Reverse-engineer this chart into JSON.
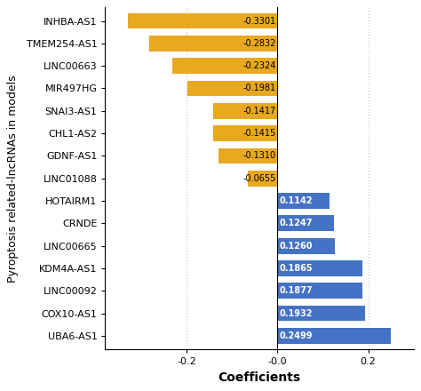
{
  "categories": [
    "INHBA-AS1",
    "TMEM254-AS1",
    "LINC00663",
    "MIR497HG",
    "SNAI3-AS1",
    "CHL1-AS2",
    "GDNF-AS1",
    "LINC01088",
    "HOTAIRM1",
    "CRNDE",
    "LINC00665",
    "KDM4A-AS1",
    "LINC00092",
    "COX10-AS1",
    "UBA6-AS1"
  ],
  "values": [
    -0.3301,
    -0.2832,
    -0.2324,
    -0.1981,
    -0.1417,
    -0.1415,
    -0.131,
    -0.0655,
    0.1142,
    0.1247,
    0.126,
    0.1865,
    0.1877,
    0.1932,
    0.2499
  ],
  "bar_colors": [
    "#E8A820",
    "#E8A820",
    "#E8A820",
    "#E8A820",
    "#E8A820",
    "#E8A820",
    "#E8A820",
    "#E8A820",
    "#4472C4",
    "#4472C4",
    "#4472C4",
    "#4472C4",
    "#4472C4",
    "#4472C4",
    "#4472C4"
  ],
  "value_labels": [
    "-0.3301",
    "-0.2832",
    "-0.2324",
    "-0.1981",
    "-0.1417",
    "-0.1415",
    "-0.1310",
    "-0.0655",
    "0.1142",
    "0.1247",
    "0.1260",
    "0.1865",
    "0.1877",
    "0.1932",
    "0.2499"
  ],
  "xlabel": "Coefficients",
  "ylabel": "Pyroptosis related-lncRNAs in models",
  "xlim": [
    -0.38,
    0.3
  ],
  "xticks": [
    -0.2,
    0.0,
    0.2
  ],
  "xticklabels": [
    "-0.2",
    "-0.0",
    "0.2"
  ],
  "background_color": "#ffffff",
  "grid_color": "#999999",
  "bar_height": 0.7,
  "label_fontsize": 8.0,
  "value_fontsize": 7.0,
  "axis_label_fontsize": 10,
  "ylabel_fontsize": 9,
  "xlabel_fontsize": 10
}
